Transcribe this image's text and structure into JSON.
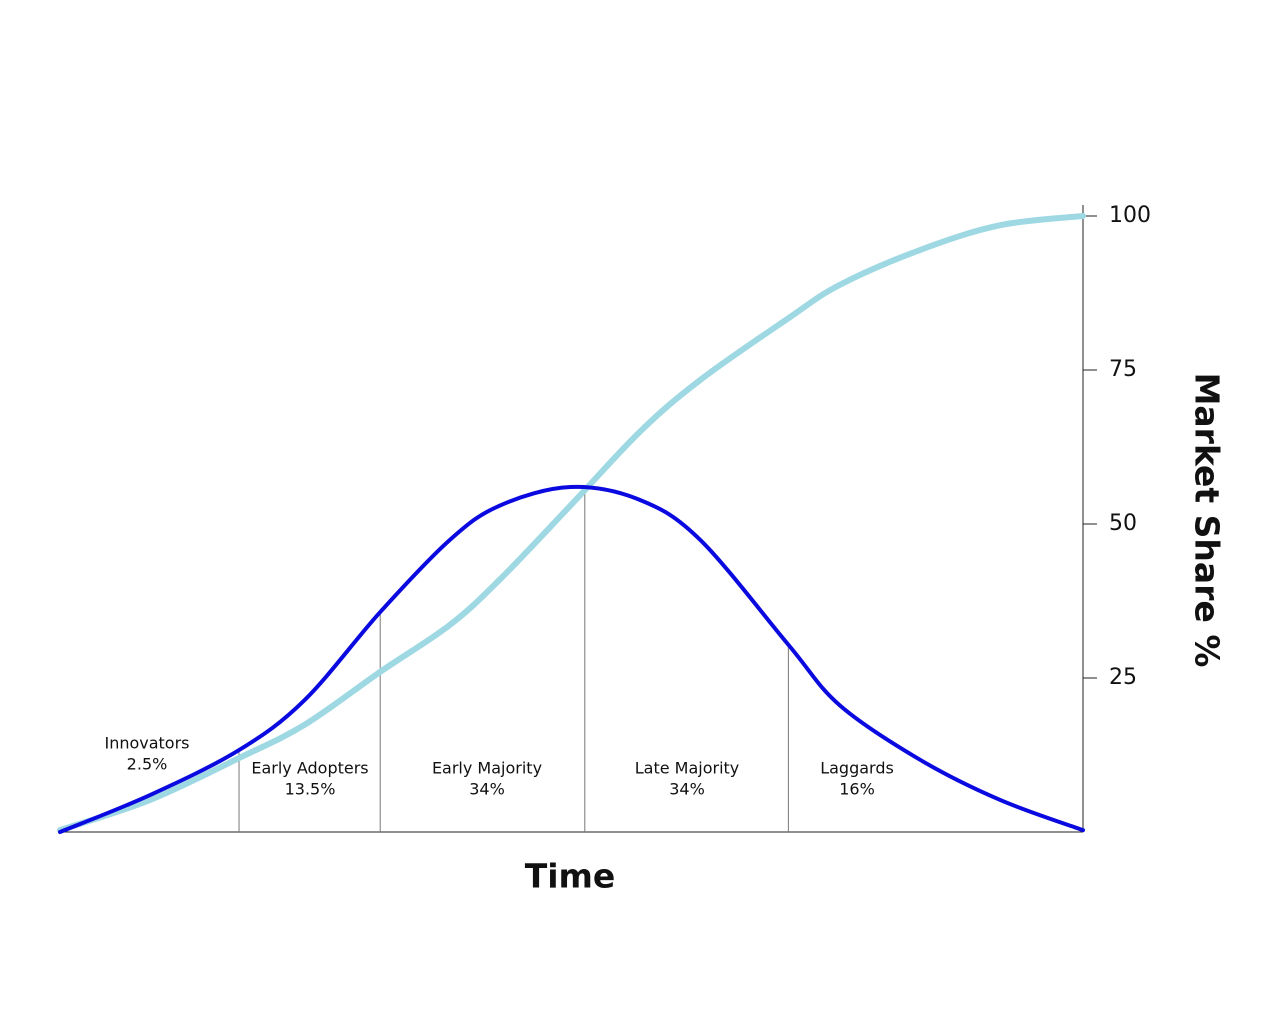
{
  "chart_data": {
    "type": "line",
    "x_label": "Time",
    "y_label": "Market Share %",
    "xlim": [
      0,
      100
    ],
    "ylim": [
      0,
      100
    ],
    "yticks": [
      25,
      50,
      75,
      100
    ],
    "x": [
      0,
      8.8,
      17.5,
      23.9,
      31.3,
      38.1,
      43,
      49.9,
      56.7,
      62.6,
      71.2,
      76.2,
      84.1,
      91.9,
      100
    ],
    "series": [
      {
        "color": "#9dd8e3",
        "values": [
          0.3,
          5.2,
          12,
          17.4,
          26,
          33.6,
          41,
          53,
          65,
          73.4,
          83.4,
          88.8,
          94.5,
          98.5,
          100
        ]
      },
      {
        "color": "#0a0ae0",
        "values": [
          0,
          6,
          13.3,
          21.4,
          35.7,
          47.4,
          53,
          56,
          53.9,
          47.4,
          30.4,
          20.6,
          11.7,
          5.2,
          0.3
        ]
      }
    ],
    "segments": {
      "names": [
        "Innovators",
        "Early Adopters",
        "Early Majority",
        "Late Majority",
        "Laggards"
      ],
      "values": [
        2.5,
        13.5,
        34,
        34,
        16
      ],
      "value_labels": [
        "2.5%",
        "13.5%",
        "34%",
        "34%",
        "16%"
      ],
      "boundaries": [
        17.5,
        31.3,
        51.3,
        71.2
      ]
    }
  }
}
